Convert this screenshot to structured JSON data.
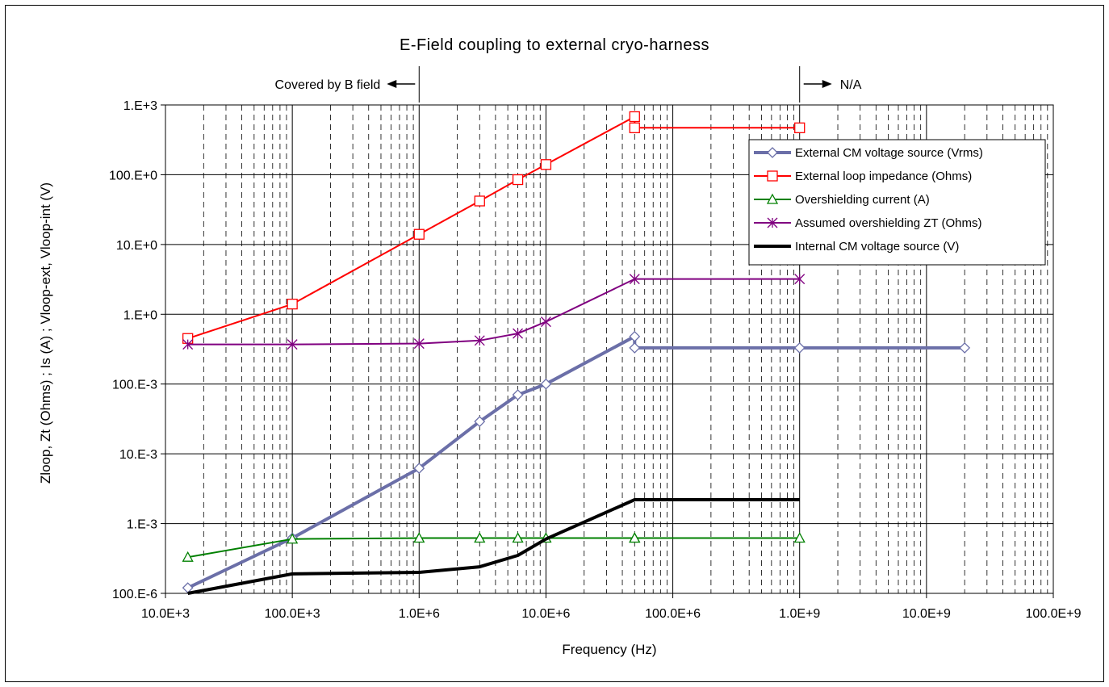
{
  "chart_data": {
    "type": "line",
    "title": "E-Field coupling to external cryo-harness",
    "xlabel": "Frequency (Hz)",
    "ylabel": "Zloop, Zt (Ohms) ; Is (A) ; Vloop-ext, Vloop-int (V)",
    "x_scale": "log",
    "y_scale": "log",
    "xlim": [
      10000,
      100000000000
    ],
    "ylim": [
      0.0001,
      1000
    ],
    "x_ticks": [
      {
        "v": 10000,
        "label": "10.0E+3"
      },
      {
        "v": 100000,
        "label": "100.0E+3"
      },
      {
        "v": 1000000,
        "label": "1.0E+6"
      },
      {
        "v": 10000000,
        "label": "10.0E+6"
      },
      {
        "v": 100000000,
        "label": "100.0E+6"
      },
      {
        "v": 1000000000,
        "label": "1.0E+9"
      },
      {
        "v": 10000000000,
        "label": "10.0E+9"
      },
      {
        "v": 100000000000,
        "label": "100.0E+9"
      }
    ],
    "y_ticks": [
      {
        "v": 0.0001,
        "label": "100.E-6"
      },
      {
        "v": 0.001,
        "label": "1.E-3"
      },
      {
        "v": 0.01,
        "label": "10.E-3"
      },
      {
        "v": 0.1,
        "label": "100.E-3"
      },
      {
        "v": 1,
        "label": "1.E+0"
      },
      {
        "v": 10,
        "label": "10.E+0"
      },
      {
        "v": 100,
        "label": "100.E+0"
      },
      {
        "v": 1000,
        "label": "1.E+3"
      }
    ],
    "grid": {
      "major": true,
      "minor_x": true
    },
    "legend_position": "right",
    "series": [
      {
        "name": "External CM voltage source (Vrms)",
        "color": "#6b6fa8",
        "marker": "diamond",
        "line_width": 4,
        "points": [
          [
            15000,
            0.00012
          ],
          [
            100000,
            0.00062
          ],
          [
            1000000,
            0.0062
          ],
          [
            3000000,
            0.029
          ],
          [
            6000000,
            0.07
          ],
          [
            10000000,
            0.1
          ],
          [
            50000000,
            0.48
          ],
          [
            50000000,
            0.33
          ],
          [
            1000000000,
            0.33
          ],
          [
            20000000000,
            0.33
          ]
        ]
      },
      {
        "name": "External loop impedance (Ohms)",
        "color": "#ff0000",
        "marker": "square",
        "line_width": 2,
        "points": [
          [
            15000,
            0.45
          ],
          [
            100000,
            1.4
          ],
          [
            1000000,
            14
          ],
          [
            3000000,
            42
          ],
          [
            6000000,
            85
          ],
          [
            10000000,
            140
          ],
          [
            50000000,
            680
          ],
          [
            50000000,
            470
          ],
          [
            1000000000,
            470
          ]
        ]
      },
      {
        "name": "Overshielding current (A)",
        "color": "#008000",
        "marker": "triangle",
        "line_width": 2,
        "points": [
          [
            15000,
            0.00033
          ],
          [
            100000,
            0.0006
          ],
          [
            1000000,
            0.00062
          ],
          [
            3000000,
            0.00062
          ],
          [
            6000000,
            0.00062
          ],
          [
            10000000,
            0.00062
          ],
          [
            50000000,
            0.00062
          ],
          [
            50000000,
            0.00062
          ],
          [
            1000000000,
            0.00062
          ]
        ]
      },
      {
        "name": "Assumed overshielding ZT (Ohms)",
        "color": "#800080",
        "marker": "asterisk",
        "line_width": 2,
        "points": [
          [
            15000,
            0.37
          ],
          [
            100000,
            0.37
          ],
          [
            1000000,
            0.38
          ],
          [
            3000000,
            0.42
          ],
          [
            6000000,
            0.53
          ],
          [
            10000000,
            0.78
          ],
          [
            50000000,
            3.2
          ],
          [
            1000000000,
            3.2
          ]
        ]
      },
      {
        "name": "Internal CM voltage source (V)",
        "color": "#000000",
        "marker": "none",
        "line_width": 4,
        "points": [
          [
            15000,
            0.0001
          ],
          [
            100000,
            0.00019
          ],
          [
            1000000,
            0.0002
          ],
          [
            3000000,
            0.00024
          ],
          [
            6000000,
            0.00035
          ],
          [
            10000000,
            0.0006
          ],
          [
            50000000,
            0.0022
          ],
          [
            1000000000,
            0.0022
          ]
        ]
      }
    ],
    "annotations": {
      "left_note": "Covered by B field",
      "left_note_at": 1000000,
      "right_note": "N/A",
      "right_note_at": 1000000000
    }
  }
}
